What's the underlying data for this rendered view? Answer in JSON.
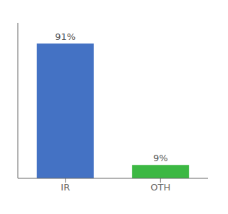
{
  "chart_data": {
    "type": "bar",
    "categories": [
      "IR",
      "OTH"
    ],
    "values": [
      91,
      9
    ],
    "value_labels": [
      "91%",
      "9%"
    ],
    "colors": [
      "#4472C4",
      "#3CB843"
    ],
    "ylim": [
      0,
      105
    ],
    "data_labels": true,
    "tick_labels": "x"
  }
}
